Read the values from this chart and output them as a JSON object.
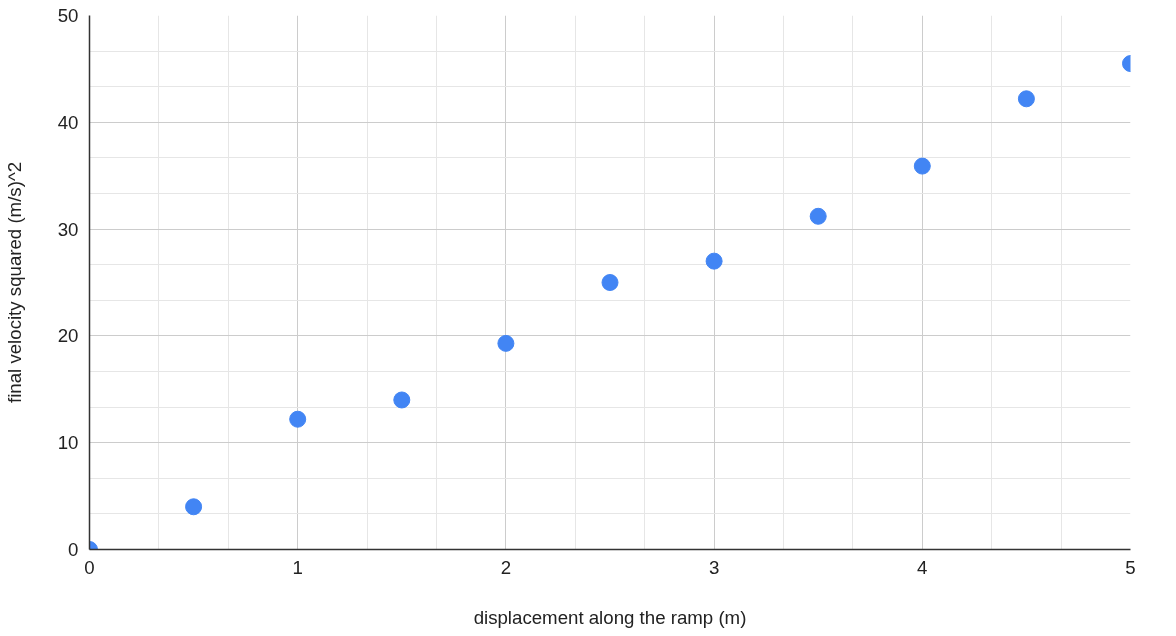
{
  "chart_data": {
    "type": "scatter",
    "xlabel": "displacement along the ramp (m)",
    "ylabel": "final velocity squared (m/s)^2",
    "x": [
      0,
      0.5,
      1,
      1.5,
      2,
      2.5,
      3,
      3.5,
      4,
      4.5,
      5
    ],
    "series": [
      {
        "color": "#4285f4",
        "values": [
          0,
          4,
          12.2,
          14,
          19.3,
          25,
          27,
          31.2,
          35.9,
          42.2,
          45.5
        ]
      }
    ],
    "xlim": [
      0,
      5
    ],
    "xticks": [
      0,
      1,
      2,
      3,
      4,
      5
    ],
    "ylim": [
      0,
      50
    ],
    "yticks": [
      0,
      10,
      20,
      30,
      40,
      50
    ],
    "grid": true,
    "marker": "circle"
  }
}
